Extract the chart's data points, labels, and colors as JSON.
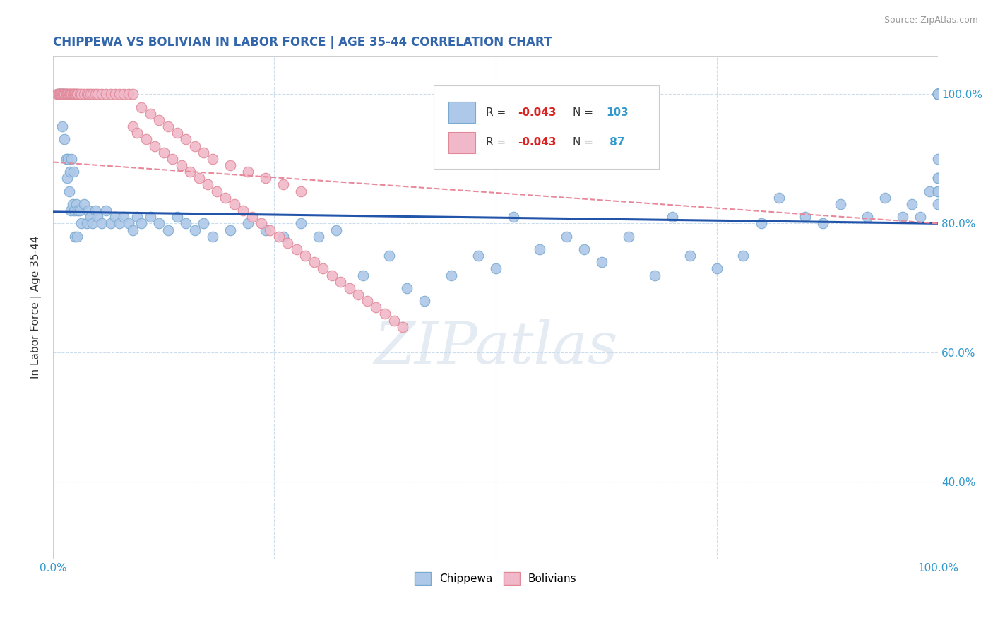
{
  "title": "CHIPPEWA VS BOLIVIAN IN LABOR FORCE | AGE 35-44 CORRELATION CHART",
  "source": "Source: ZipAtlas.com",
  "ylabel": "In Labor Force | Age 35-44",
  "xlim": [
    0.0,
    1.0
  ],
  "ylim": [
    0.28,
    1.06
  ],
  "chippewa_color": "#adc8e8",
  "chippewa_edge": "#7aaad0",
  "bolivian_color": "#f0b8c8",
  "bolivian_edge": "#e08898",
  "chippewa_line_color": "#2255aa",
  "bolivian_line_color": "#e8889a",
  "r_chippewa": "-0.043",
  "n_chippewa": "103",
  "r_bolivian": "-0.043",
  "n_bolivian": " 87",
  "watermark": "ZIPatlas",
  "chip_line_y0": 0.818,
  "chip_line_y1": 0.8,
  "bol_line_y0": 0.895,
  "bol_line_y1": 0.8,
  "chippewa_x": [
    0.005,
    0.007,
    0.008,
    0.009,
    0.01,
    0.01,
    0.011,
    0.012,
    0.013,
    0.014,
    0.015,
    0.016,
    0.017,
    0.018,
    0.019,
    0.02,
    0.021,
    0.022,
    0.023,
    0.024,
    0.025,
    0.026,
    0.027,
    0.028,
    0.03,
    0.032,
    0.035,
    0.038,
    0.04,
    0.042,
    0.045,
    0.048,
    0.05,
    0.055,
    0.06,
    0.065,
    0.07,
    0.075,
    0.08,
    0.085,
    0.09,
    0.095,
    0.1,
    0.11,
    0.12,
    0.13,
    0.14,
    0.15,
    0.16,
    0.17,
    0.18,
    0.2,
    0.22,
    0.24,
    0.26,
    0.28,
    0.3,
    0.32,
    0.35,
    0.38,
    0.4,
    0.42,
    0.45,
    0.48,
    0.5,
    0.52,
    0.55,
    0.58,
    0.6,
    0.62,
    0.65,
    0.68,
    0.7,
    0.72,
    0.75,
    0.78,
    0.8,
    0.82,
    0.85,
    0.87,
    0.89,
    0.92,
    0.94,
    0.96,
    0.97,
    0.98,
    0.99,
    1.0,
    1.0,
    1.0,
    1.0,
    1.0,
    1.0,
    1.0,
    1.0,
    1.0,
    1.0,
    1.0,
    1.0,
    1.0,
    1.0,
    1.0,
    1.0
  ],
  "chippewa_y": [
    1.0,
    1.0,
    1.0,
    1.0,
    1.0,
    0.95,
    1.0,
    1.0,
    0.93,
    1.0,
    0.9,
    0.87,
    0.9,
    0.85,
    0.88,
    0.82,
    0.9,
    0.83,
    0.88,
    0.82,
    0.78,
    0.83,
    0.78,
    0.82,
    0.82,
    0.8,
    0.83,
    0.8,
    0.82,
    0.81,
    0.8,
    0.82,
    0.81,
    0.8,
    0.82,
    0.8,
    0.81,
    0.8,
    0.81,
    0.8,
    0.79,
    0.81,
    0.8,
    0.81,
    0.8,
    0.79,
    0.81,
    0.8,
    0.79,
    0.8,
    0.78,
    0.79,
    0.8,
    0.79,
    0.78,
    0.8,
    0.78,
    0.79,
    0.72,
    0.75,
    0.7,
    0.68,
    0.72,
    0.75,
    0.73,
    0.81,
    0.76,
    0.78,
    0.76,
    0.74,
    0.78,
    0.72,
    0.81,
    0.75,
    0.73,
    0.75,
    0.8,
    0.84,
    0.81,
    0.8,
    0.83,
    0.81,
    0.84,
    0.81,
    0.83,
    0.81,
    0.85,
    1.0,
    1.0,
    0.87,
    1.0,
    1.0,
    1.0,
    0.83,
    1.0,
    0.87,
    1.0,
    1.0,
    0.85,
    1.0,
    0.9,
    0.85,
    1.0
  ],
  "bolivian_x": [
    0.005,
    0.006,
    0.007,
    0.008,
    0.009,
    0.01,
    0.011,
    0.012,
    0.013,
    0.014,
    0.015,
    0.016,
    0.017,
    0.018,
    0.019,
    0.02,
    0.021,
    0.022,
    0.023,
    0.024,
    0.025,
    0.026,
    0.027,
    0.028,
    0.03,
    0.032,
    0.035,
    0.038,
    0.04,
    0.042,
    0.045,
    0.048,
    0.05,
    0.055,
    0.06,
    0.065,
    0.07,
    0.075,
    0.08,
    0.085,
    0.09,
    0.1,
    0.11,
    0.12,
    0.13,
    0.14,
    0.15,
    0.16,
    0.17,
    0.18,
    0.2,
    0.22,
    0.24,
    0.26,
    0.28,
    0.09,
    0.095,
    0.105,
    0.115,
    0.125,
    0.135,
    0.145,
    0.155,
    0.165,
    0.175,
    0.185,
    0.195,
    0.205,
    0.215,
    0.225,
    0.235,
    0.245,
    0.255,
    0.265,
    0.275,
    0.285,
    0.295,
    0.305,
    0.315,
    0.325,
    0.335,
    0.345,
    0.355,
    0.365,
    0.375,
    0.385,
    0.395
  ],
  "bolivian_y": [
    1.0,
    1.0,
    1.0,
    1.0,
    1.0,
    1.0,
    1.0,
    1.0,
    1.0,
    1.0,
    1.0,
    1.0,
    1.0,
    1.0,
    1.0,
    1.0,
    1.0,
    1.0,
    1.0,
    1.0,
    1.0,
    1.0,
    1.0,
    1.0,
    1.0,
    1.0,
    1.0,
    1.0,
    1.0,
    1.0,
    1.0,
    1.0,
    1.0,
    1.0,
    1.0,
    1.0,
    1.0,
    1.0,
    1.0,
    1.0,
    1.0,
    0.98,
    0.97,
    0.96,
    0.95,
    0.94,
    0.93,
    0.92,
    0.91,
    0.9,
    0.89,
    0.88,
    0.87,
    0.86,
    0.85,
    0.95,
    0.94,
    0.93,
    0.92,
    0.91,
    0.9,
    0.89,
    0.88,
    0.87,
    0.86,
    0.85,
    0.84,
    0.83,
    0.82,
    0.81,
    0.8,
    0.79,
    0.78,
    0.77,
    0.76,
    0.75,
    0.74,
    0.73,
    0.72,
    0.71,
    0.7,
    0.69,
    0.68,
    0.67,
    0.66,
    0.65,
    0.64
  ]
}
